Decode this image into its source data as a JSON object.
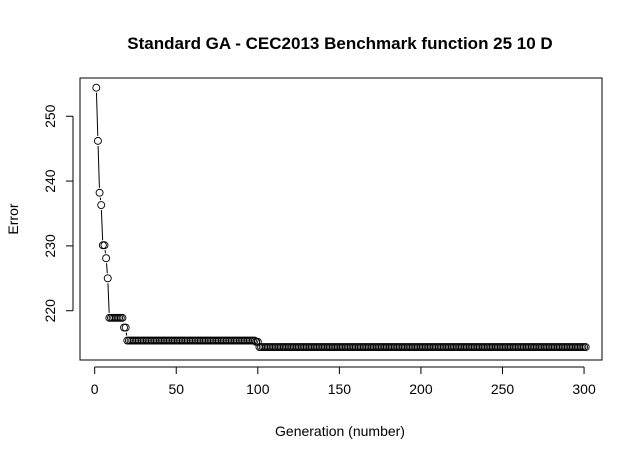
{
  "chart_data": {
    "type": "line",
    "style": "points-and-lines",
    "title": "Standard GA - CEC2013 Benchmark function  25 10 D",
    "xlabel": "Generation (number)",
    "ylabel": "Error",
    "xlim": [
      -9,
      311
    ],
    "ylim": [
      212.4,
      255.9
    ],
    "xticks": [
      0,
      50,
      100,
      150,
      200,
      250,
      300
    ],
    "yticks": [
      220,
      230,
      240,
      250
    ],
    "xtick_labels": [
      "0",
      "50",
      "100",
      "150",
      "200",
      "250",
      "300"
    ],
    "ytick_labels": [
      "220",
      "230",
      "240",
      "250"
    ],
    "grid": false,
    "legend": "none",
    "colors": {
      "points": "#000000",
      "line": "#000000",
      "background": "#ffffff"
    },
    "series": [
      {
        "segments": [
          {
            "x_from": 1,
            "x_to": 1,
            "y": 254.4
          },
          {
            "x_from": 2,
            "x_to": 2,
            "y": 246.2
          },
          {
            "x_from": 3,
            "x_to": 3,
            "y": 238.2
          },
          {
            "x_from": 4,
            "x_to": 4,
            "y": 236.3
          },
          {
            "x_from": 5,
            "x_to": 6,
            "y": 230.1
          },
          {
            "x_from": 7,
            "x_to": 7,
            "y": 228.1
          },
          {
            "x_from": 8,
            "x_to": 8,
            "y": 225.0
          },
          {
            "x_from": 9,
            "x_to": 17,
            "y": 218.9
          },
          {
            "x_from": 18,
            "x_to": 19,
            "y": 217.4
          },
          {
            "x_from": 20,
            "x_to": 98,
            "y": 215.4
          },
          {
            "x_from": 99,
            "x_to": 100,
            "y": 215.2
          },
          {
            "x_from": 101,
            "x_to": 301,
            "y": 214.4
          }
        ]
      }
    ]
  }
}
